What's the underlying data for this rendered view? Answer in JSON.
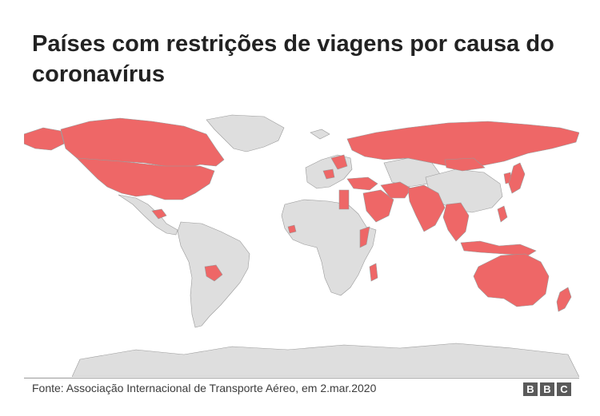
{
  "title": "Países com restrições de viagens por causa do coronavírus",
  "source": "Fonte: Associação Internacional de Transporte Aéreo, em 2.mar.2020",
  "logo_text": [
    "B",
    "B",
    "C"
  ],
  "colors": {
    "restricted": "#ee6767",
    "not_restricted": "#dedede",
    "border": "#9a9a9a",
    "title": "#222222"
  },
  "legend": []
}
